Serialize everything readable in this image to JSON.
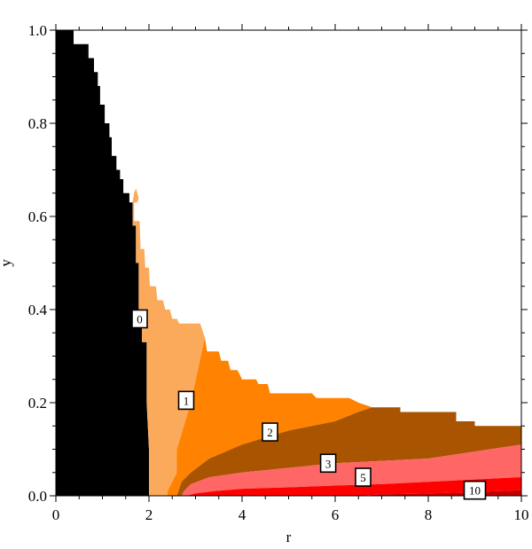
{
  "chart_data": {
    "type": "contour",
    "title": "",
    "xlabel": "r",
    "ylabel": "y",
    "xlim": [
      0,
      10
    ],
    "ylim": [
      0,
      1.0
    ],
    "xticks": [
      "0",
      "2",
      "4",
      "6",
      "8",
      "10"
    ],
    "yticks": [
      "0.0",
      "0.2",
      "0.4",
      "0.6",
      "0.8",
      "1.0"
    ],
    "xtick_values": [
      0,
      2,
      4,
      6,
      8,
      10
    ],
    "ytick_values": [
      0,
      0.2,
      0.4,
      0.6,
      0.8,
      1.0
    ],
    "colors": {
      "excluded": "#000000",
      "level_0": "#fbaa5c",
      "level_1": "#ff8200",
      "level_2": "#a85400",
      "level_3": "#ff6666",
      "level_5": "#fe0000",
      "level_10": "#c40000"
    },
    "regions": [
      {
        "name": "excluded",
        "color_key": "excluded",
        "points": [
          [
            0,
            0
          ],
          [
            0,
            1.0
          ],
          [
            0.38,
            1.0
          ],
          [
            0.38,
            0.97
          ],
          [
            0.7,
            0.97
          ],
          [
            0.7,
            0.94
          ],
          [
            0.82,
            0.94
          ],
          [
            0.82,
            0.91
          ],
          [
            0.9,
            0.91
          ],
          [
            0.9,
            0.88
          ],
          [
            0.95,
            0.88
          ],
          [
            0.95,
            0.84
          ],
          [
            1.05,
            0.84
          ],
          [
            1.05,
            0.8
          ],
          [
            1.15,
            0.8
          ],
          [
            1.15,
            0.77
          ],
          [
            1.2,
            0.77
          ],
          [
            1.2,
            0.73
          ],
          [
            1.3,
            0.73
          ],
          [
            1.3,
            0.7
          ],
          [
            1.38,
            0.7
          ],
          [
            1.38,
            0.68
          ],
          [
            1.45,
            0.68
          ],
          [
            1.45,
            0.65
          ],
          [
            1.58,
            0.65
          ],
          [
            1.58,
            0.63
          ],
          [
            1.65,
            0.63
          ],
          [
            1.65,
            0.58
          ],
          [
            1.72,
            0.58
          ],
          [
            1.72,
            0.5
          ],
          [
            1.78,
            0.5
          ],
          [
            1.78,
            0.4
          ],
          [
            1.85,
            0.4
          ],
          [
            1.85,
            0.33
          ],
          [
            1.95,
            0.33
          ],
          [
            1.95,
            0.2
          ],
          [
            2.0,
            0.1
          ],
          [
            2.0,
            0
          ]
        ]
      },
      {
        "name": "level_0",
        "color_key": "level_0",
        "points": [
          [
            1.68,
            0.65
          ],
          [
            1.72,
            0.66
          ],
          [
            1.78,
            0.64
          ],
          [
            1.75,
            0.63
          ],
          [
            1.68,
            0.63
          ],
          [
            1.68,
            0.59
          ],
          [
            1.8,
            0.59
          ],
          [
            1.82,
            0.53
          ],
          [
            1.9,
            0.53
          ],
          [
            1.92,
            0.49
          ],
          [
            2.0,
            0.49
          ],
          [
            2.02,
            0.45
          ],
          [
            2.15,
            0.45
          ],
          [
            2.18,
            0.42
          ],
          [
            2.3,
            0.42
          ],
          [
            2.35,
            0.4
          ],
          [
            2.45,
            0.4
          ],
          [
            2.5,
            0.38
          ],
          [
            2.6,
            0.38
          ],
          [
            2.65,
            0.37
          ],
          [
            2.8,
            0.37
          ],
          [
            3.1,
            0.37
          ],
          [
            3.2,
            0.34
          ],
          [
            2.9,
            0.2
          ],
          [
            2.6,
            0.1
          ],
          [
            2.6,
            0.05
          ],
          [
            2.5,
            0.03
          ],
          [
            2.4,
            0.01
          ],
          [
            2.4,
            0
          ],
          [
            2.0,
            0
          ],
          [
            2.0,
            0.1
          ],
          [
            1.95,
            0.2
          ],
          [
            1.95,
            0.33
          ],
          [
            1.85,
            0.33
          ],
          [
            1.85,
            0.4
          ],
          [
            1.78,
            0.4
          ],
          [
            1.78,
            0.5
          ],
          [
            1.72,
            0.5
          ],
          [
            1.72,
            0.58
          ],
          [
            1.65,
            0.58
          ],
          [
            1.65,
            0.63
          ]
        ]
      },
      {
        "name": "level_1",
        "color_key": "level_1",
        "points": [
          [
            3.2,
            0.34
          ],
          [
            3.25,
            0.31
          ],
          [
            3.5,
            0.31
          ],
          [
            3.55,
            0.29
          ],
          [
            3.7,
            0.29
          ],
          [
            3.75,
            0.27
          ],
          [
            3.9,
            0.27
          ],
          [
            4.0,
            0.25
          ],
          [
            4.3,
            0.25
          ],
          [
            4.35,
            0.24
          ],
          [
            4.55,
            0.24
          ],
          [
            4.6,
            0.22
          ],
          [
            5.5,
            0.22
          ],
          [
            5.6,
            0.21
          ],
          [
            6.3,
            0.21
          ],
          [
            6.5,
            0.2
          ],
          [
            6.8,
            0.19
          ],
          [
            6.5,
            0.18
          ],
          [
            6.0,
            0.16
          ],
          [
            5.0,
            0.14
          ],
          [
            4.0,
            0.11
          ],
          [
            3.3,
            0.08
          ],
          [
            2.9,
            0.05
          ],
          [
            2.7,
            0.03
          ],
          [
            2.6,
            0
          ],
          [
            2.4,
            0
          ],
          [
            2.4,
            0.01
          ],
          [
            2.5,
            0.03
          ],
          [
            2.6,
            0.05
          ],
          [
            2.6,
            0.1
          ],
          [
            2.9,
            0.2
          ]
        ]
      },
      {
        "name": "level_2",
        "color_key": "level_2",
        "points": [
          [
            6.8,
            0.19
          ],
          [
            7.4,
            0.19
          ],
          [
            7.4,
            0.18
          ],
          [
            8.6,
            0.18
          ],
          [
            8.6,
            0.16
          ],
          [
            9.0,
            0.16
          ],
          [
            9.0,
            0.15
          ],
          [
            10.0,
            0.15
          ],
          [
            10.0,
            0.11
          ],
          [
            9.0,
            0.095
          ],
          [
            8.0,
            0.08
          ],
          [
            7.0,
            0.075
          ],
          [
            6.0,
            0.07
          ],
          [
            5.0,
            0.06
          ],
          [
            4.0,
            0.05
          ],
          [
            3.3,
            0.04
          ],
          [
            2.9,
            0.025
          ],
          [
            2.75,
            0.01
          ],
          [
            2.7,
            0
          ],
          [
            2.6,
            0
          ],
          [
            2.7,
            0.03
          ],
          [
            2.9,
            0.05
          ],
          [
            3.3,
            0.08
          ],
          [
            4.0,
            0.11
          ],
          [
            5.0,
            0.14
          ],
          [
            6.0,
            0.16
          ],
          [
            6.5,
            0.18
          ]
        ]
      },
      {
        "name": "level_3",
        "color_key": "level_3",
        "points": [
          [
            10.0,
            0.11
          ],
          [
            10.0,
            0.04
          ],
          [
            9.0,
            0.035
          ],
          [
            8.0,
            0.03
          ],
          [
            7.0,
            0.025
          ],
          [
            6.0,
            0.022
          ],
          [
            5.0,
            0.018
          ],
          [
            4.0,
            0.015
          ],
          [
            3.4,
            0.01
          ],
          [
            3.0,
            0.005
          ],
          [
            2.8,
            0
          ],
          [
            2.7,
            0
          ],
          [
            2.75,
            0.01
          ],
          [
            2.9,
            0.025
          ],
          [
            3.3,
            0.04
          ],
          [
            4.0,
            0.05
          ],
          [
            5.0,
            0.06
          ],
          [
            6.0,
            0.07
          ],
          [
            7.0,
            0.075
          ],
          [
            8.0,
            0.08
          ],
          [
            9.0,
            0.095
          ]
        ]
      },
      {
        "name": "level_5",
        "color_key": "level_5",
        "points": [
          [
            10.0,
            0.04
          ],
          [
            10.0,
            0.012
          ],
          [
            9.0,
            0.008
          ],
          [
            8.0,
            0.005
          ],
          [
            7.0,
            0.003
          ],
          [
            6.5,
            0
          ],
          [
            2.8,
            0
          ],
          [
            3.0,
            0.005
          ],
          [
            3.4,
            0.01
          ],
          [
            4.0,
            0.015
          ],
          [
            5.0,
            0.018
          ],
          [
            6.0,
            0.022
          ],
          [
            7.0,
            0.025
          ],
          [
            8.0,
            0.03
          ],
          [
            9.0,
            0.035
          ]
        ]
      },
      {
        "name": "level_10",
        "color_key": "level_10",
        "points": [
          [
            10.0,
            0.012
          ],
          [
            10.0,
            0
          ],
          [
            6.5,
            0
          ],
          [
            7.0,
            0.003
          ],
          [
            8.0,
            0.005
          ],
          [
            9.0,
            0.008
          ]
        ]
      }
    ],
    "contour_labels": [
      {
        "text": "0",
        "x": 1.8,
        "y": 0.38
      },
      {
        "text": "1",
        "x": 2.8,
        "y": 0.205
      },
      {
        "text": "2",
        "x": 4.6,
        "y": 0.137
      },
      {
        "text": "3",
        "x": 5.85,
        "y": 0.07
      },
      {
        "text": "5",
        "x": 6.6,
        "y": 0.04
      },
      {
        "text": "10",
        "x": 9.0,
        "y": 0.012
      }
    ]
  }
}
